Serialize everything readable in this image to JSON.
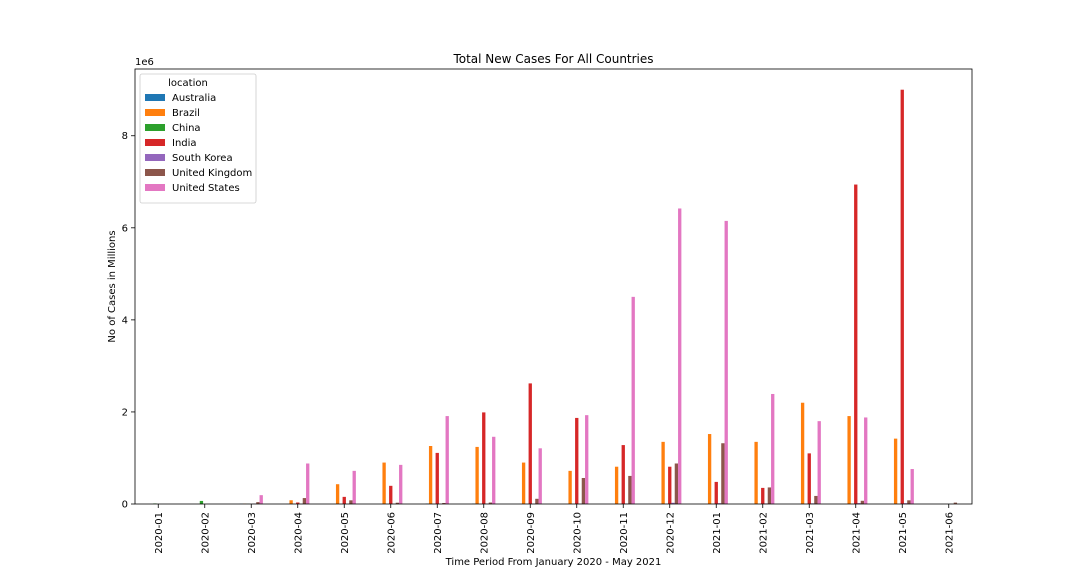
{
  "chart_data": {
    "type": "bar",
    "title": "Total New Cases For All Countries",
    "xlabel": "Time Period From January 2020 - May 2021",
    "ylabel": "No of Cases in Millions",
    "y_multiplier": "1e6",
    "ylim": [
      0,
      9450000
    ],
    "yticks": [
      0,
      2000000,
      4000000,
      6000000,
      8000000
    ],
    "ytick_labels": [
      "0",
      "2",
      "4",
      "6",
      "8"
    ],
    "grid": false,
    "legend": {
      "title": "location",
      "placement": "top-left"
    },
    "categories": [
      "2020-01",
      "2020-02",
      "2020-03",
      "2020-04",
      "2020-05",
      "2020-06",
      "2020-07",
      "2020-08",
      "2020-09",
      "2020-10",
      "2020-11",
      "2020-12",
      "2021-01",
      "2021-02",
      "2021-03",
      "2021-04",
      "2021-05",
      "2021-06"
    ],
    "series": [
      {
        "name": "Australia",
        "color": "#1f77b4",
        "values": [
          9,
          16,
          4550,
          2200,
          480,
          320,
          9050,
          7400,
          800,
          400,
          300,
          500,
          300,
          150,
          150,
          250,
          350,
          100
        ]
      },
      {
        "name": "Brazil",
        "color": "#ff7f0e",
        "values": [
          0,
          2,
          5700,
          81300,
          430000,
          900000,
          1260000,
          1240000,
          900000,
          720000,
          810000,
          1350000,
          1520000,
          1350000,
          2200000,
          1910000,
          1420000,
          0
        ]
      },
      {
        "name": "China",
        "color": "#2ca02c",
        "values": [
          11800,
          67000,
          3300,
          1600,
          100,
          500,
          700,
          400,
          300,
          400,
          300,
          500,
          2200,
          400,
          300,
          400,
          300,
          100
        ]
      },
      {
        "name": "India",
        "color": "#d62728",
        "values": [
          1,
          2,
          1400,
          33000,
          155000,
          395000,
          1110000,
          1990000,
          2620000,
          1870000,
          1280000,
          810000,
          480000,
          350000,
          1100000,
          6940000,
          9000000,
          0
        ]
      },
      {
        "name": "South Korea",
        "color": "#9467bd",
        "values": [
          11,
          3100,
          6700,
          1000,
          700,
          1300,
          1500,
          5600,
          3700,
          2800,
          7900,
          26600,
          17600,
          11500,
          13400,
          18900,
          17000,
          800
        ]
      },
      {
        "name": "United Kingdom",
        "color": "#8c564b",
        "values": [
          2,
          21,
          41000,
          129000,
          80000,
          28000,
          22000,
          32000,
          113000,
          565000,
          610000,
          880000,
          1320000,
          360000,
          175000,
          70000,
          80000,
          30000
        ]
      },
      {
        "name": "United States",
        "color": "#e377c2",
        "values": [
          7,
          60,
          192000,
          880000,
          720000,
          850000,
          1910000,
          1460000,
          1210000,
          1930000,
          4500000,
          6420000,
          6150000,
          2390000,
          1800000,
          1880000,
          760000,
          0
        ]
      }
    ]
  }
}
